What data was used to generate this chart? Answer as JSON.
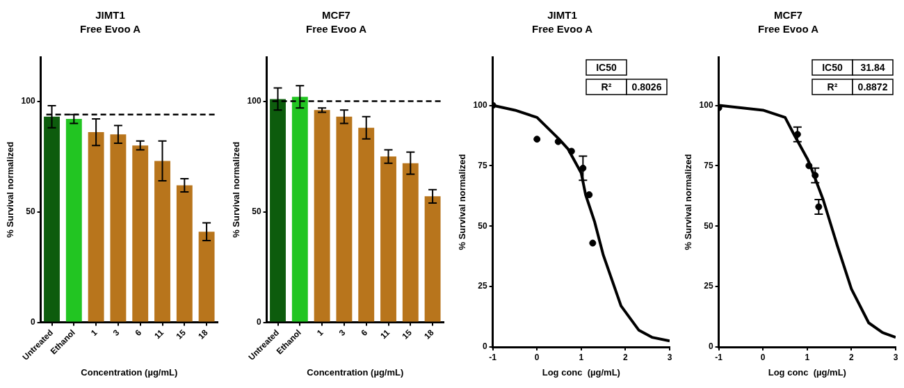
{
  "chart_data": [
    {
      "type": "bar",
      "title": "JIMT1",
      "subtitle": "Free Evoo A",
      "xlabel": "Concentration (µg/mL)",
      "ylabel": "% Survival normalized",
      "categories": [
        "Untreated",
        "Ethanol",
        "1",
        "3",
        "6",
        "11",
        "15",
        "18"
      ],
      "values": [
        93,
        92,
        86,
        85,
        80,
        73,
        62,
        41
      ],
      "errors": [
        5,
        2,
        6,
        4,
        2,
        9,
        3,
        4
      ],
      "colors": [
        "#0d5c0d",
        "#22c522",
        "#b8751c",
        "#b8751c",
        "#b8751c",
        "#b8751c",
        "#b8751c",
        "#b8751c"
      ],
      "ylim": [
        0,
        120
      ],
      "yticks": [
        0,
        50,
        100
      ],
      "ref_lines": [
        {
          "axis": "y",
          "value": 94,
          "line_style": "dashed",
          "color": "#000000"
        }
      ]
    },
    {
      "type": "bar",
      "title": "MCF7",
      "subtitle": "Free Evoo A",
      "xlabel": "Concentration (µg/mL)",
      "ylabel": "% Survival normalized",
      "categories": [
        "Untreated",
        "Ethanol",
        "1",
        "3",
        "6",
        "11",
        "15",
        "18"
      ],
      "values": [
        101,
        102,
        96,
        93,
        88,
        75,
        72,
        57
      ],
      "errors": [
        5,
        5,
        1,
        3,
        5,
        3,
        5,
        3
      ],
      "colors": [
        "#0d5c0d",
        "#22c522",
        "#b8751c",
        "#b8751c",
        "#b8751c",
        "#b8751c",
        "#b8751c",
        "#b8751c"
      ],
      "ylim": [
        0,
        120
      ],
      "yticks": [
        0,
        50,
        100
      ],
      "ref_lines": [
        {
          "axis": "y",
          "value": 100,
          "line_style": "dashed",
          "color": "#000000"
        }
      ]
    },
    {
      "type": "scatter",
      "title": "JIMT1",
      "subtitle": "Free Evoo A",
      "xlabel": "Log conc  (µg/mL)",
      "ylabel": "% Survival normalized",
      "xlim": [
        -1,
        3
      ],
      "xticks": [
        -1,
        0,
        1,
        2,
        3
      ],
      "ylim": [
        0,
        120
      ],
      "yticks": [
        0,
        25,
        50,
        75,
        100
      ],
      "annotations": [
        "IC50",
        "R²",
        "0.8026"
      ],
      "series": [
        {
          "color": "#000000",
          "marker": "circle",
          "x": [
            -1,
            0,
            0.48,
            0.78,
            1.04,
            1.18,
            1.26
          ],
          "values": [
            100,
            86,
            85,
            81,
            74,
            63,
            43
          ],
          "errors": [
            null,
            null,
            null,
            null,
            5,
            null,
            null
          ]
        },
        {
          "type": "line",
          "marker": "none",
          "color": "#000000",
          "x": [
            -1,
            -0.5,
            0,
            0.5,
            0.7,
            1,
            1.1,
            1.3,
            1.5,
            1.9,
            2.3,
            2.6,
            3
          ],
          "values": [
            100,
            98,
            95,
            86,
            82,
            72,
            63,
            52,
            38,
            17,
            7,
            4,
            2.5
          ]
        }
      ]
    },
    {
      "type": "scatter",
      "title": "MCF7",
      "subtitle": "Free Evoo A",
      "xlabel": "Log conc  (µg/mL)",
      "ylabel": "% Survival normalized",
      "xlim": [
        -1,
        3
      ],
      "xticks": [
        -1,
        0,
        1,
        2,
        3
      ],
      "ylim": [
        0,
        120
      ],
      "yticks": [
        0,
        25,
        50,
        75,
        100
      ],
      "annotations": [
        "IC50",
        "31.84",
        "R²",
        "0.8872"
      ],
      "series": [
        {
          "color": "#000000",
          "marker": "circle",
          "x": [
            -1,
            0.78,
            1.04,
            1.18,
            1.26
          ],
          "values": [
            99,
            88,
            75,
            71,
            58
          ],
          "errors": [
            null,
            3,
            null,
            3,
            3
          ]
        },
        {
          "type": "line",
          "marker": "none",
          "color": "#000000",
          "x": [
            -1,
            -0.5,
            0,
            0.5,
            0.7,
            1,
            1.05,
            1.36,
            1.68,
            2,
            2.39,
            2.7,
            3
          ],
          "values": [
            100,
            99,
            98,
            95,
            88,
            78,
            76,
            61,
            42,
            24,
            10,
            6,
            4
          ]
        }
      ]
    }
  ]
}
